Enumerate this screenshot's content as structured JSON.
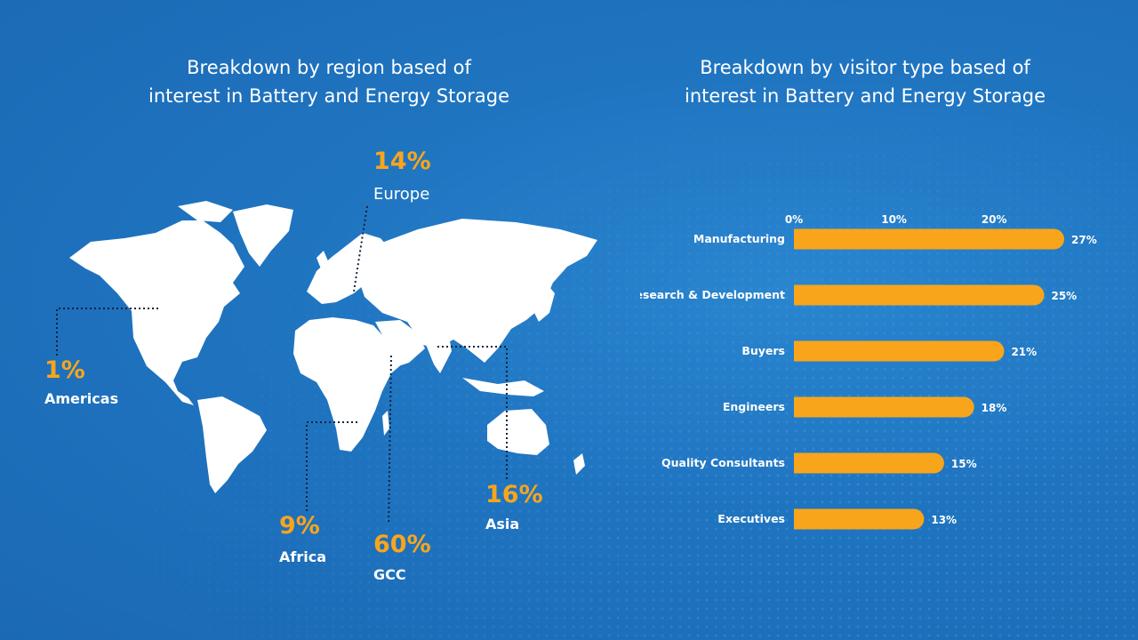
{
  "colors": {
    "background": "#1f74c0",
    "accent": "#f9a51b",
    "land": "#ffffff"
  },
  "map_panel": {
    "title_line1": "Breakdown by region based of",
    "title_line2": "interest in Battery and Energy Storage",
    "regions": [
      {
        "key": "europe",
        "pct": "14%",
        "name": "Europe"
      },
      {
        "key": "americas",
        "pct": "1%",
        "name": "Americas"
      },
      {
        "key": "africa",
        "pct": "9%",
        "name": "Africa"
      },
      {
        "key": "gcc",
        "pct": "60%",
        "name": "GCC"
      },
      {
        "key": "asia",
        "pct": "16%",
        "name": "Asia"
      }
    ]
  },
  "bar_panel": {
    "title_line1": "Breakdown by visitor type based of",
    "title_line2": "interest in Battery and Energy Storage"
  },
  "chart_data": [
    {
      "type": "pie",
      "title": "Breakdown by region based of interest in Battery and Energy Storage",
      "categories": [
        "Europe",
        "Americas",
        "Africa",
        "GCC",
        "Asia"
      ],
      "values": [
        14,
        1,
        9,
        60,
        16
      ],
      "unit": "%"
    },
    {
      "type": "bar",
      "orientation": "horizontal",
      "title": "Breakdown by visitor type based of interest in Battery and Energy Storage",
      "categories": [
        "Manufacturing",
        "Research & Development",
        "Buyers",
        "Engineers",
        "Quality Consultants",
        "Executives"
      ],
      "values": [
        27,
        25,
        21,
        18,
        15,
        13
      ],
      "value_labels": [
        "27%",
        "25%",
        "21%",
        "18%",
        "15%",
        "13%"
      ],
      "xticks": [
        0,
        10,
        20
      ],
      "xtick_labels": [
        "0%",
        "10%",
        "20%"
      ],
      "xlim": [
        0,
        27
      ],
      "grid": false,
      "bar_color": "#f9a51b"
    }
  ]
}
